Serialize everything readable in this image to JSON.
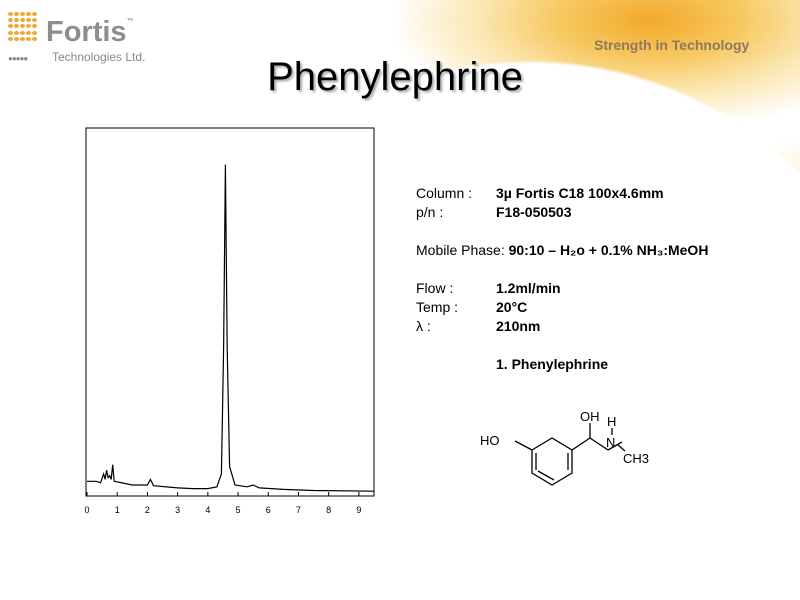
{
  "logo": {
    "brand": "Fortis",
    "tm": "™",
    "subtitle": "Technologies Ltd.",
    "tagline": "Strength in Technology"
  },
  "title": "Phenylephrine",
  "colors": {
    "accent": "#f0a92e",
    "brand_grey": "#8d8d8d"
  },
  "info": {
    "column_label": "Column :",
    "column_value": "3µ Fortis C18 100x4.6mm",
    "pn_label": "p/n :",
    "pn_value": "F18-050503",
    "mobile_label": "Mobile Phase: ",
    "mobile_value": "90:10 – H₂o + 0.1% NH₃:MeOH",
    "flow_label": "Flow :",
    "flow_value": "1.2ml/min",
    "temp_label": "Temp :",
    "temp_value": "20°C",
    "lambda_label": "λ :",
    "lambda_value": "210nm",
    "peak_list": "1. Phenylephrine"
  },
  "structure": {
    "labels": {
      "ho": "HO",
      "oh": "OH",
      "h": "H",
      "n": "N",
      "ch3": "CH3"
    }
  },
  "chart_data": {
    "type": "line",
    "title": "",
    "xlabel": "",
    "ylabel": "",
    "xlim": [
      0,
      9.5
    ],
    "ylim": [
      0,
      100
    ],
    "xticks": [
      0,
      1,
      2,
      3,
      4,
      5,
      6,
      7,
      8,
      9
    ],
    "grid": false,
    "series": [
      {
        "points": [
          [
            0,
            4
          ],
          [
            0.3,
            4
          ],
          [
            0.45,
            3.6
          ],
          [
            0.55,
            6
          ],
          [
            0.6,
            4.5
          ],
          [
            0.65,
            7
          ],
          [
            0.7,
            5
          ],
          [
            0.75,
            5.5
          ],
          [
            0.8,
            4.5
          ],
          [
            0.85,
            8.5
          ],
          [
            0.9,
            4
          ],
          [
            1.2,
            3.5
          ],
          [
            1.5,
            3
          ],
          [
            2.0,
            3
          ],
          [
            2.1,
            4.5
          ],
          [
            2.2,
            2.8
          ],
          [
            3.0,
            2.2
          ],
          [
            3.5,
            2
          ],
          [
            4.0,
            2
          ],
          [
            4.3,
            2.5
          ],
          [
            4.45,
            6
          ],
          [
            4.52,
            40
          ],
          [
            4.58,
            90
          ],
          [
            4.64,
            40
          ],
          [
            4.72,
            8
          ],
          [
            4.9,
            3
          ],
          [
            5.3,
            2.5
          ],
          [
            5.5,
            3
          ],
          [
            5.7,
            2.2
          ],
          [
            6.5,
            1.8
          ],
          [
            7.5,
            1.5
          ],
          [
            9.5,
            1.3
          ]
        ]
      }
    ],
    "peaks": [
      {
        "label": "1",
        "name": "Phenylephrine",
        "rt": 4.6
      }
    ]
  }
}
